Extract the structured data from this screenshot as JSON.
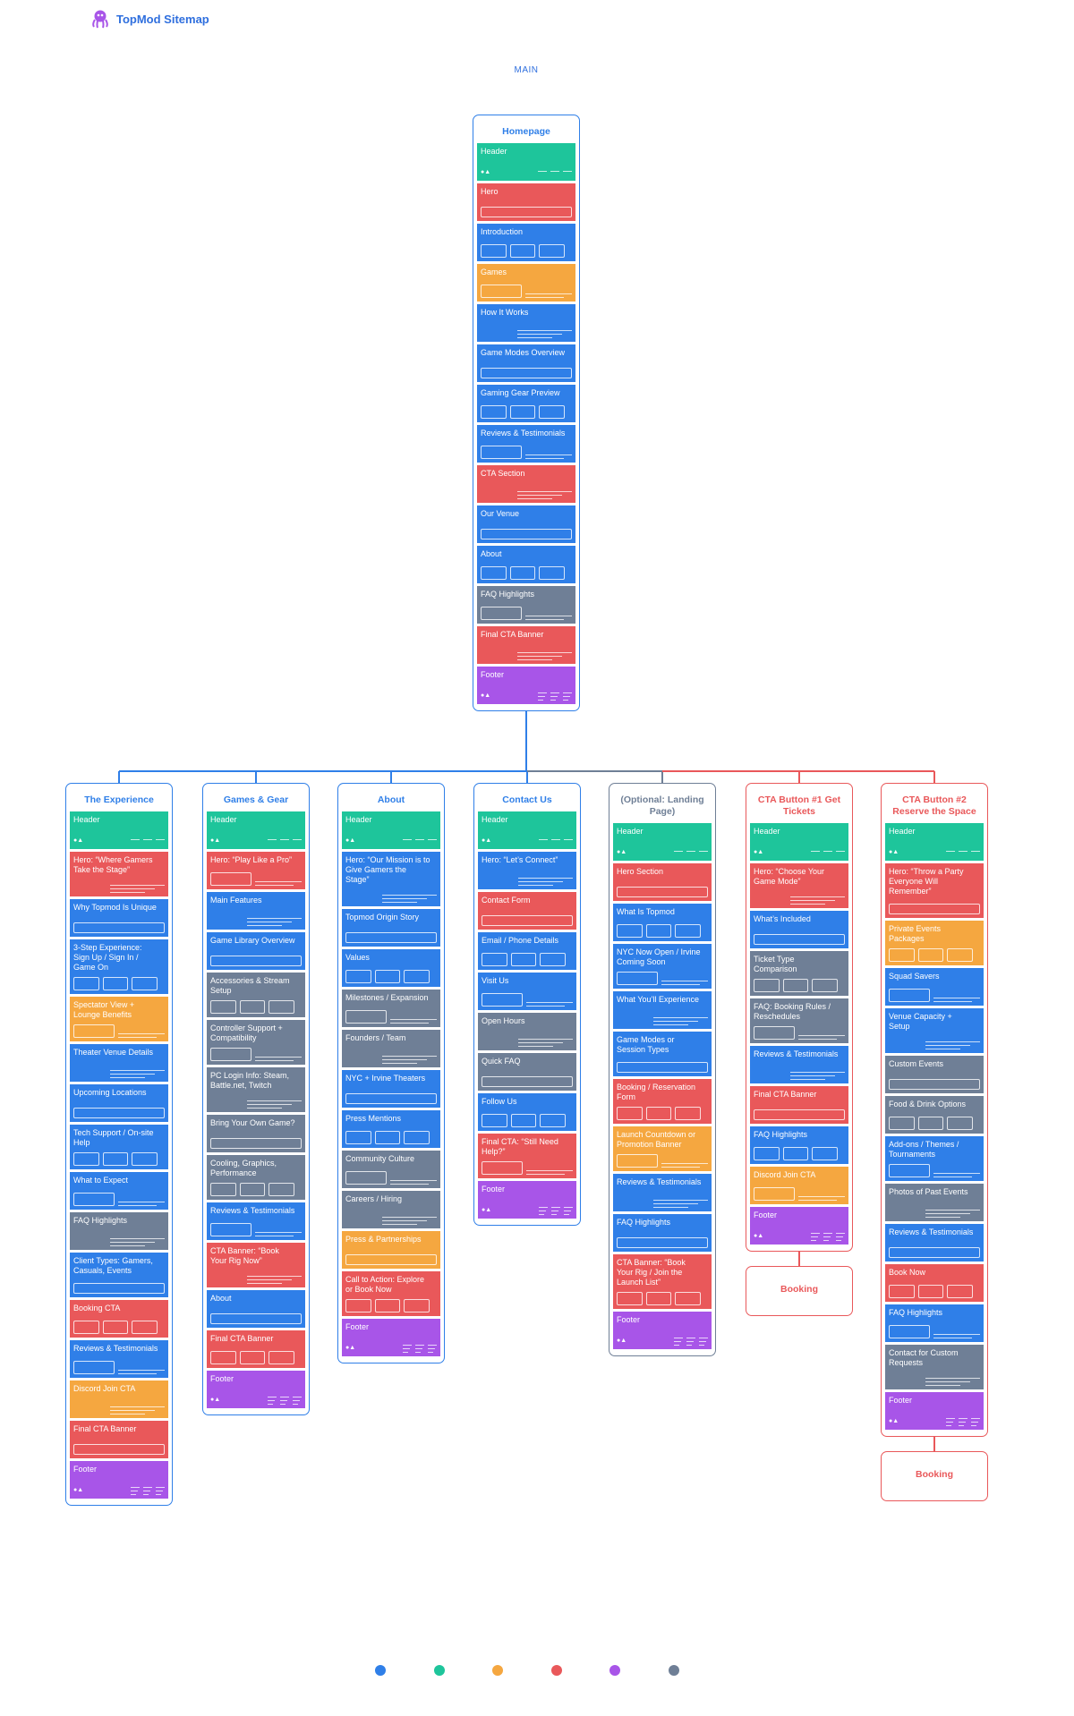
{
  "header": {
    "title": "TopMod Sitemap"
  },
  "main_label": "MAIN",
  "legend_colors": [
    "#2f7fe8",
    "#1ec59b",
    "#f5a740",
    "#e9585a",
    "#a855e8",
    "#6f7f96"
  ],
  "homepage": {
    "title": "Homepage",
    "color": "#2f7fe8",
    "sections": [
      {
        "label": "Header",
        "color": "#1ec59b"
      },
      {
        "label": "Hero",
        "color": "#e9585a"
      },
      {
        "label": "Introduction",
        "color": "#2f7fe8"
      },
      {
        "label": "Games",
        "color": "#f5a740"
      },
      {
        "label": "How It Works",
        "color": "#2f7fe8"
      },
      {
        "label": "Game Modes Overview",
        "color": "#2f7fe8"
      },
      {
        "label": "Gaming Gear Preview",
        "color": "#2f7fe8"
      },
      {
        "label": "Reviews & Testimonials",
        "color": "#2f7fe8"
      },
      {
        "label": "CTA Section",
        "color": "#e9585a"
      },
      {
        "label": "Our Venue",
        "color": "#2f7fe8"
      },
      {
        "label": "About",
        "color": "#2f7fe8"
      },
      {
        "label": "FAQ Highlights",
        "color": "#6f7f96"
      },
      {
        "label": "Final CTA Banner",
        "color": "#e9585a"
      },
      {
        "label": "Footer",
        "color": "#a855e8"
      }
    ]
  },
  "pages": [
    {
      "title": "The Experience",
      "color": "#2f7fe8",
      "sections": [
        {
          "label": "Header",
          "color": "#1ec59b"
        },
        {
          "label": "Hero: “Where Gamers Take the Stage”",
          "color": "#e9585a"
        },
        {
          "label": "Why Topmod Is Unique",
          "color": "#2f7fe8"
        },
        {
          "label": "3-Step Experience: Sign Up / Sign In / Game On",
          "color": "#2f7fe8"
        },
        {
          "label": "Spectator View + Lounge Benefits",
          "color": "#f5a740"
        },
        {
          "label": "Theater Venue Details",
          "color": "#2f7fe8"
        },
        {
          "label": "Upcoming Locations",
          "color": "#2f7fe8"
        },
        {
          "label": "Tech Support / On-site Help",
          "color": "#2f7fe8"
        },
        {
          "label": "What to Expect",
          "color": "#2f7fe8"
        },
        {
          "label": "FAQ Highlights",
          "color": "#6f7f96"
        },
        {
          "label": "Client Types: Gamers, Casuals, Events",
          "color": "#2f7fe8"
        },
        {
          "label": "Booking CTA",
          "color": "#e9585a"
        },
        {
          "label": "Reviews & Testimonials",
          "color": "#2f7fe8"
        },
        {
          "label": "Discord Join CTA",
          "color": "#f5a740"
        },
        {
          "label": "Final CTA Banner",
          "color": "#e9585a"
        },
        {
          "label": "Footer",
          "color": "#a855e8"
        }
      ]
    },
    {
      "title": "Games & Gear",
      "color": "#2f7fe8",
      "sections": [
        {
          "label": "Header",
          "color": "#1ec59b"
        },
        {
          "label": "Hero: “Play Like a Pro”",
          "color": "#e9585a"
        },
        {
          "label": "Main Features",
          "color": "#2f7fe8"
        },
        {
          "label": "Game Library Overview",
          "color": "#2f7fe8"
        },
        {
          "label": "Accessories & Stream Setup",
          "color": "#6f7f96"
        },
        {
          "label": "Controller Support + Compatibility",
          "color": "#6f7f96"
        },
        {
          "label": "PC Login Info: Steam, Battle.net, Twitch",
          "color": "#6f7f96"
        },
        {
          "label": "Bring Your Own Game?",
          "color": "#6f7f96"
        },
        {
          "label": "Cooling, Graphics, Performance",
          "color": "#6f7f96"
        },
        {
          "label": "Reviews & Testimonials",
          "color": "#2f7fe8"
        },
        {
          "label": "CTA Banner: “Book Your Rig Now”",
          "color": "#e9585a"
        },
        {
          "label": "About",
          "color": "#2f7fe8"
        },
        {
          "label": "Final CTA Banner",
          "color": "#e9585a"
        },
        {
          "label": "Footer",
          "color": "#a855e8"
        }
      ]
    },
    {
      "title": "About",
      "color": "#2f7fe8",
      "sections": [
        {
          "label": "Header",
          "color": "#1ec59b"
        },
        {
          "label": "Hero: “Our Mission is to Give Gamers the Stage”",
          "color": "#2f7fe8"
        },
        {
          "label": "Topmod Origin Story",
          "color": "#2f7fe8"
        },
        {
          "label": "Values",
          "color": "#2f7fe8"
        },
        {
          "label": "Milestones / Expansion",
          "color": "#6f7f96"
        },
        {
          "label": "Founders / Team",
          "color": "#6f7f96"
        },
        {
          "label": "NYC + Irvine Theaters",
          "color": "#2f7fe8"
        },
        {
          "label": "Press Mentions",
          "color": "#2f7fe8"
        },
        {
          "label": "Community Culture",
          "color": "#6f7f96"
        },
        {
          "label": "Careers / Hiring",
          "color": "#6f7f96"
        },
        {
          "label": "Press & Partnerships",
          "color": "#f5a740"
        },
        {
          "label": "Call to Action: Explore or Book Now",
          "color": "#e9585a"
        },
        {
          "label": "Footer",
          "color": "#a855e8"
        }
      ]
    },
    {
      "title": "Contact Us",
      "color": "#2f7fe8",
      "sections": [
        {
          "label": "Header",
          "color": "#1ec59b"
        },
        {
          "label": "Hero: “Let’s Connect”",
          "color": "#2f7fe8"
        },
        {
          "label": "Contact Form",
          "color": "#e9585a"
        },
        {
          "label": "Email / Phone Details",
          "color": "#2f7fe8"
        },
        {
          "label": "Visit Us",
          "color": "#2f7fe8"
        },
        {
          "label": "Open Hours",
          "color": "#6f7f96"
        },
        {
          "label": "Quick FAQ",
          "color": "#6f7f96"
        },
        {
          "label": "Follow Us",
          "color": "#2f7fe8"
        },
        {
          "label": "Final CTA: “Still Need Help?”",
          "color": "#e9585a"
        },
        {
          "label": "Footer",
          "color": "#a855e8"
        }
      ]
    },
    {
      "title": "(Optional: Landing Page)",
      "color": "#6f7f96",
      "sections": [
        {
          "label": "Header",
          "color": "#1ec59b"
        },
        {
          "label": "Hero Section",
          "color": "#e9585a"
        },
        {
          "label": "What Is Topmod",
          "color": "#2f7fe8"
        },
        {
          "label": "NYC Now Open / Irvine Coming Soon",
          "color": "#2f7fe8"
        },
        {
          "label": "What You’ll Experience",
          "color": "#2f7fe8"
        },
        {
          "label": "Game Modes or Session Types",
          "color": "#2f7fe8"
        },
        {
          "label": "Booking / Reservation Form",
          "color": "#e9585a"
        },
        {
          "label": "Launch Countdown or Promotion Banner",
          "color": "#f5a740"
        },
        {
          "label": "Reviews & Testimonials",
          "color": "#2f7fe8"
        },
        {
          "label": "FAQ Highlights",
          "color": "#2f7fe8"
        },
        {
          "label": "CTA Banner: “Book Your Rig / Join the Launch List”",
          "color": "#e9585a"
        },
        {
          "label": "Footer",
          "color": "#a855e8"
        }
      ]
    },
    {
      "title": "CTA Button #1 Get Tickets",
      "color": "#e9585a",
      "booking": "Booking",
      "sections": [
        {
          "label": "Header",
          "color": "#1ec59b"
        },
        {
          "label": "Hero: “Choose Your Game Mode”",
          "color": "#e9585a"
        },
        {
          "label": "What’s Included",
          "color": "#2f7fe8"
        },
        {
          "label": "Ticket Type Comparison",
          "color": "#6f7f96"
        },
        {
          "label": "FAQ: Booking Rules / Reschedules",
          "color": "#6f7f96"
        },
        {
          "label": "Reviews & Testimonials",
          "color": "#2f7fe8"
        },
        {
          "label": "Final CTA Banner",
          "color": "#e9585a"
        },
        {
          "label": "FAQ Highlights",
          "color": "#2f7fe8"
        },
        {
          "label": "Discord Join CTA",
          "color": "#f5a740"
        },
        {
          "label": "Footer",
          "color": "#a855e8"
        }
      ]
    },
    {
      "title": "CTA Button #2 Reserve the Space",
      "color": "#e9585a",
      "booking": "Booking",
      "sections": [
        {
          "label": "Header",
          "color": "#1ec59b"
        },
        {
          "label": "Hero: “Throw a Party Everyone Will Remember”",
          "color": "#e9585a"
        },
        {
          "label": "Private Events Packages",
          "color": "#f5a740"
        },
        {
          "label": "Squad Savers",
          "color": "#2f7fe8"
        },
        {
          "label": "Venue Capacity + Setup",
          "color": "#2f7fe8"
        },
        {
          "label": "Custom Events",
          "color": "#6f7f96"
        },
        {
          "label": "Food & Drink Options",
          "color": "#6f7f96"
        },
        {
          "label": "Add-ons / Themes / Tournaments",
          "color": "#2f7fe8"
        },
        {
          "label": "Photos of Past Events",
          "color": "#6f7f96"
        },
        {
          "label": "Reviews & Testimonials",
          "color": "#2f7fe8"
        },
        {
          "label": "Book Now",
          "color": "#e9585a"
        },
        {
          "label": "FAQ Highlights",
          "color": "#2f7fe8"
        },
        {
          "label": "Contact for Custom Requests",
          "color": "#6f7f96"
        },
        {
          "label": "Footer",
          "color": "#a855e8"
        }
      ]
    }
  ]
}
